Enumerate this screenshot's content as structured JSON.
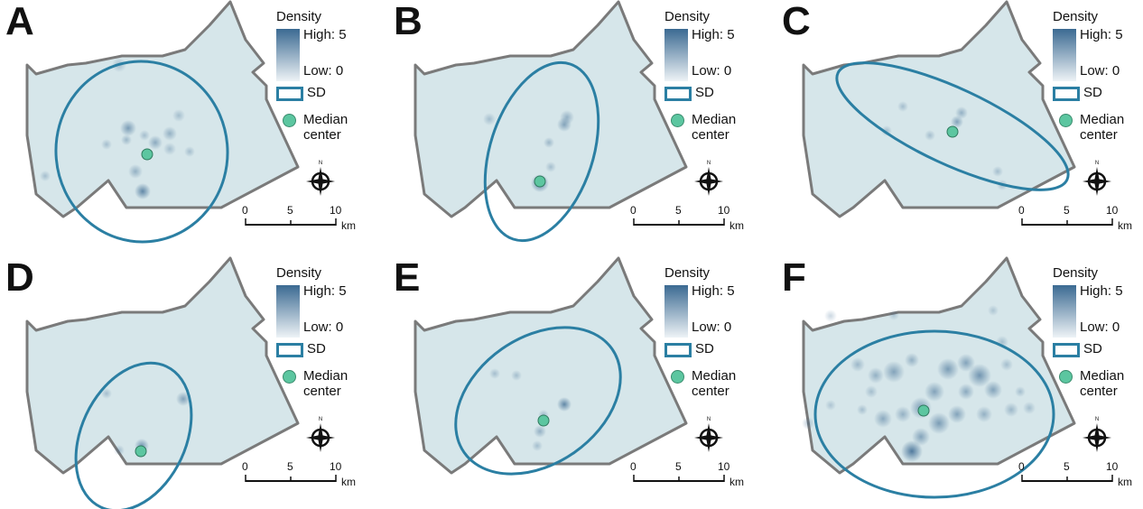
{
  "legend": {
    "title": "Density",
    "high_label": "High",
    "high_value": "5",
    "low_label": "Low",
    "low_value": "0",
    "sd_label": "SD",
    "median_label": "Median center"
  },
  "scale": {
    "ticks": [
      "0",
      "5",
      "10"
    ],
    "unit": "km"
  },
  "colors": {
    "region_fill": "#d6e6ea",
    "region_stroke": "#7a7a7a",
    "ellipse": "#2b7fa3",
    "median": "#5cc6a0",
    "density_high": "#2f5f8a"
  },
  "panels": [
    {
      "letter": "A"
    },
    {
      "letter": "B"
    },
    {
      "letter": "C"
    },
    {
      "letter": "D"
    },
    {
      "letter": "E"
    },
    {
      "letter": "F"
    }
  ]
}
